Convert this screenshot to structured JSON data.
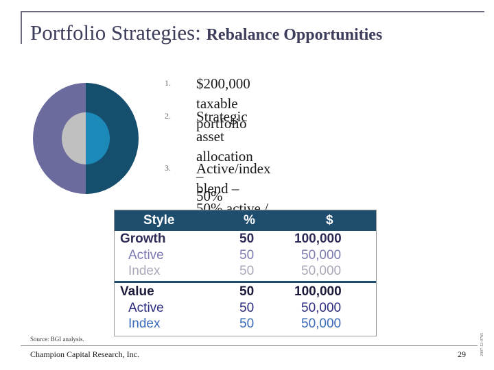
{
  "title": {
    "main": "Portfolio Strategies:",
    "sub": "Rebalance Opportunities"
  },
  "chart_data": {
    "type": "pie",
    "outer": [
      {
        "name": "Value",
        "value": 50,
        "color": "#6b6b9e"
      },
      {
        "name": "Growth",
        "value": 50,
        "color": "#164e6e"
      }
    ],
    "inner": [
      {
        "name": "Index",
        "value": 50,
        "color": "#c0c0c0"
      },
      {
        "name": "Active",
        "value": 50,
        "color": "#1c8ab8"
      }
    ]
  },
  "list": [
    {
      "num": "1.",
      "lines": [
        "$200,000 taxable portfolio"
      ]
    },
    {
      "num": "2.",
      "lines": [
        "Strategic asset allocation –",
        "50% value / 50% growth"
      ]
    },
    {
      "num": "3.",
      "lines": [
        "Active/index blend –",
        "50% active / 50% index"
      ]
    }
  ],
  "table": {
    "headers": {
      "style": "Style",
      "pct": "%",
      "usd": "$"
    },
    "rows": [
      {
        "style": "Growth",
        "pct": "50",
        "usd": "100,000"
      },
      {
        "style": "Active",
        "pct": "50",
        "usd": "50,000"
      },
      {
        "style": "Index",
        "pct": "50",
        "usd": "50,000"
      },
      {
        "style": "Value",
        "pct": "50",
        "usd": "100,000"
      },
      {
        "style": "Active",
        "pct": "50",
        "usd": "50,000"
      },
      {
        "style": "Index",
        "pct": "50",
        "usd": "50,000"
      }
    ],
    "colors": {
      "header": "#1e4d6e",
      "group": "#2b2b55",
      "sub_growth": "#7a7ab0",
      "sub_index": "#a8a8b8",
      "sub_value": "#3a6ab8"
    }
  },
  "source": "Source: BGI analysis.",
  "footer": {
    "company": "Champion Capital Research, Inc.",
    "page": "29",
    "code": "2007-12-0785"
  }
}
